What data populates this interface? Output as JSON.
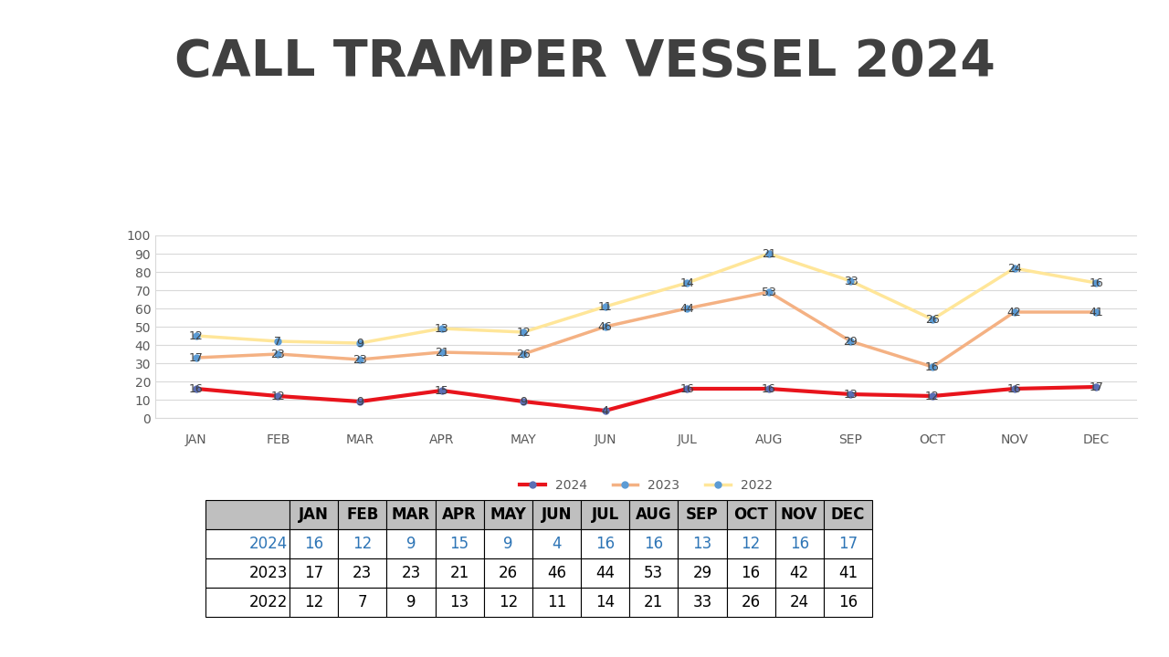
{
  "chart_data": {
    "type": "line",
    "title": "CALL TRAMPER VESSEL 2024",
    "categories": [
      "JAN",
      "FEB",
      "MAR",
      "APR",
      "MAY",
      "JUN",
      "JUL",
      "AUG",
      "SEP",
      "OCT",
      "NOV",
      "DEC"
    ],
    "series": [
      {
        "name": "2024",
        "color": "#e8141c",
        "marker": "o",
        "values": [
          16,
          12,
          9,
          15,
          9,
          4,
          16,
          16,
          13,
          12,
          16,
          17
        ]
      },
      {
        "name": "2023",
        "color": "#f4b183",
        "marker": "o",
        "values": [
          17,
          23,
          23,
          21,
          26,
          46,
          44,
          53,
          29,
          16,
          42,
          41
        ]
      },
      {
        "name": "2022",
        "color": "#ffe699",
        "marker": "o",
        "values": [
          12,
          7,
          9,
          13,
          12,
          11,
          14,
          21,
          33,
          26,
          24,
          16
        ]
      }
    ],
    "ylim": [
      0,
      100
    ],
    "yticks": [
      0,
      10,
      20,
      30,
      40,
      50,
      60,
      70,
      80,
      90,
      100
    ],
    "grid": true,
    "stacked": true,
    "data_labels": true,
    "legend": "bottom"
  }
}
